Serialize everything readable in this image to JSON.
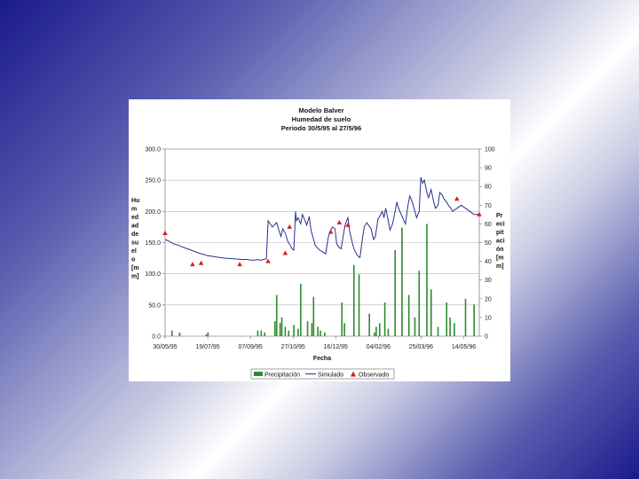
{
  "chart_data": {
    "type": "line",
    "title_lines": [
      "Modelo Balver",
      "Humedad de suelo",
      "Periodo 30/5/95 al 27/5/96"
    ],
    "xlabel": "Fecha",
    "ylabel_left_lines": [
      "Hu",
      "m",
      "ed",
      "ad",
      "de",
      "su",
      "el",
      "o",
      "[m",
      "m]"
    ],
    "ylabel_right_lines": [
      "Pr",
      "eci",
      "pit",
      "aci",
      "ón",
      "[m",
      "m]"
    ],
    "x_tick_labels": [
      "30/05/95",
      "19/07/95",
      "07/09/95",
      "27/10/95",
      "16/12/95",
      "04/02/96",
      "25/03/96",
      "14/05/96"
    ],
    "y_left_ticks": [
      "0.0",
      "50.0",
      "100.0",
      "150.0",
      "200.0",
      "250.0",
      "300.0"
    ],
    "y_right_ticks": [
      "0",
      "10",
      "20",
      "30",
      "40",
      "50",
      "60",
      "70",
      "80",
      "90",
      "100"
    ],
    "y_left_lim": [
      0,
      300
    ],
    "y_right_lim": [
      0,
      100
    ],
    "x_range_days": [
      0,
      366
    ],
    "grid": "horizontal",
    "legend": [
      "Precipitación",
      "Simulado",
      "Observado"
    ],
    "legend_position": "bottom",
    "colors": {
      "precip": "#2e8b2e",
      "simulado": "#2a2f8f",
      "observado": "#d42020"
    },
    "series": [
      {
        "name": "Simulado",
        "axis": "left",
        "x_day": [
          0,
          5,
          10,
          15,
          20,
          30,
          40,
          50,
          55,
          60,
          70,
          80,
          90,
          95,
          100,
          105,
          108,
          110,
          112,
          115,
          118,
          120,
          125,
          130,
          133,
          135,
          137,
          140,
          143,
          146,
          148,
          150,
          152,
          153,
          155,
          158,
          160,
          163,
          165,
          168,
          170,
          172,
          175,
          180,
          185,
          187,
          190,
          193,
          195,
          198,
          200,
          203,
          205,
          208,
          210,
          213,
          215,
          218,
          220,
          223,
          225,
          227,
          230,
          232,
          235,
          240,
          243,
          245,
          248,
          250,
          253,
          255,
          257,
          260,
          262,
          265,
          268,
          270,
          272,
          275,
          280,
          283,
          285,
          288,
          290,
          293,
          296,
          298,
          300,
          302,
          305,
          307,
          310,
          313,
          315,
          318,
          320,
          323,
          325,
          328,
          330,
          333,
          335,
          340,
          345,
          350,
          355,
          360,
          366
        ],
        "values": [
          155,
          152,
          148,
          146,
          143,
          138,
          133,
          129,
          128,
          127,
          125,
          124,
          123,
          123,
          122,
          122,
          123,
          122,
          122,
          123,
          124,
          185,
          175,
          182,
          168,
          160,
          172,
          165,
          152,
          145,
          140,
          138,
          200,
          185,
          190,
          180,
          195,
          185,
          178,
          192,
          170,
          160,
          145,
          138,
          134,
          132,
          158,
          170,
          175,
          172,
          148,
          142,
          140,
          165,
          180,
          190,
          168,
          150,
          140,
          132,
          128,
          126,
          158,
          175,
          182,
          172,
          155,
          160,
          188,
          192,
          200,
          190,
          205,
          185,
          170,
          180,
          200,
          215,
          205,
          195,
          180,
          210,
          225,
          215,
          205,
          190,
          200,
          255,
          245,
          250,
          230,
          222,
          235,
          215,
          205,
          210,
          230,
          226,
          220,
          215,
          210,
          205,
          200,
          205,
          210,
          205,
          200,
          195,
          195
        ]
      },
      {
        "name": "Observado",
        "axis": "left",
        "x_day": [
          0,
          32,
          42,
          87,
          120,
          140,
          145,
          193,
          203,
          213,
          340,
          366
        ],
        "values": [
          165,
          115,
          117,
          115,
          120,
          133,
          175,
          167,
          182,
          178,
          220,
          195
        ]
      },
      {
        "name": "Precipitación",
        "axis": "right",
        "x_day": [
          8,
          17,
          48,
          50,
          108,
          112,
          116,
          128,
          130,
          134,
          136,
          140,
          144,
          150,
          155,
          158,
          166,
          171,
          173,
          178,
          181,
          186,
          206,
          209,
          220,
          226,
          238,
          244,
          246,
          250,
          256,
          260,
          268,
          276,
          284,
          291,
          296,
          305,
          310,
          318,
          328,
          332,
          337,
          350,
          360
        ],
        "values": [
          3,
          2,
          1,
          2,
          3,
          3,
          2,
          8,
          22,
          7,
          10,
          5,
          3,
          6,
          4,
          28,
          8,
          7,
          21,
          5,
          3,
          2,
          18,
          7,
          38,
          33,
          12,
          2,
          5,
          7,
          18,
          4,
          46,
          58,
          22,
          10,
          35,
          60,
          25,
          5,
          18,
          10,
          7,
          20,
          17
        ]
      }
    ]
  }
}
